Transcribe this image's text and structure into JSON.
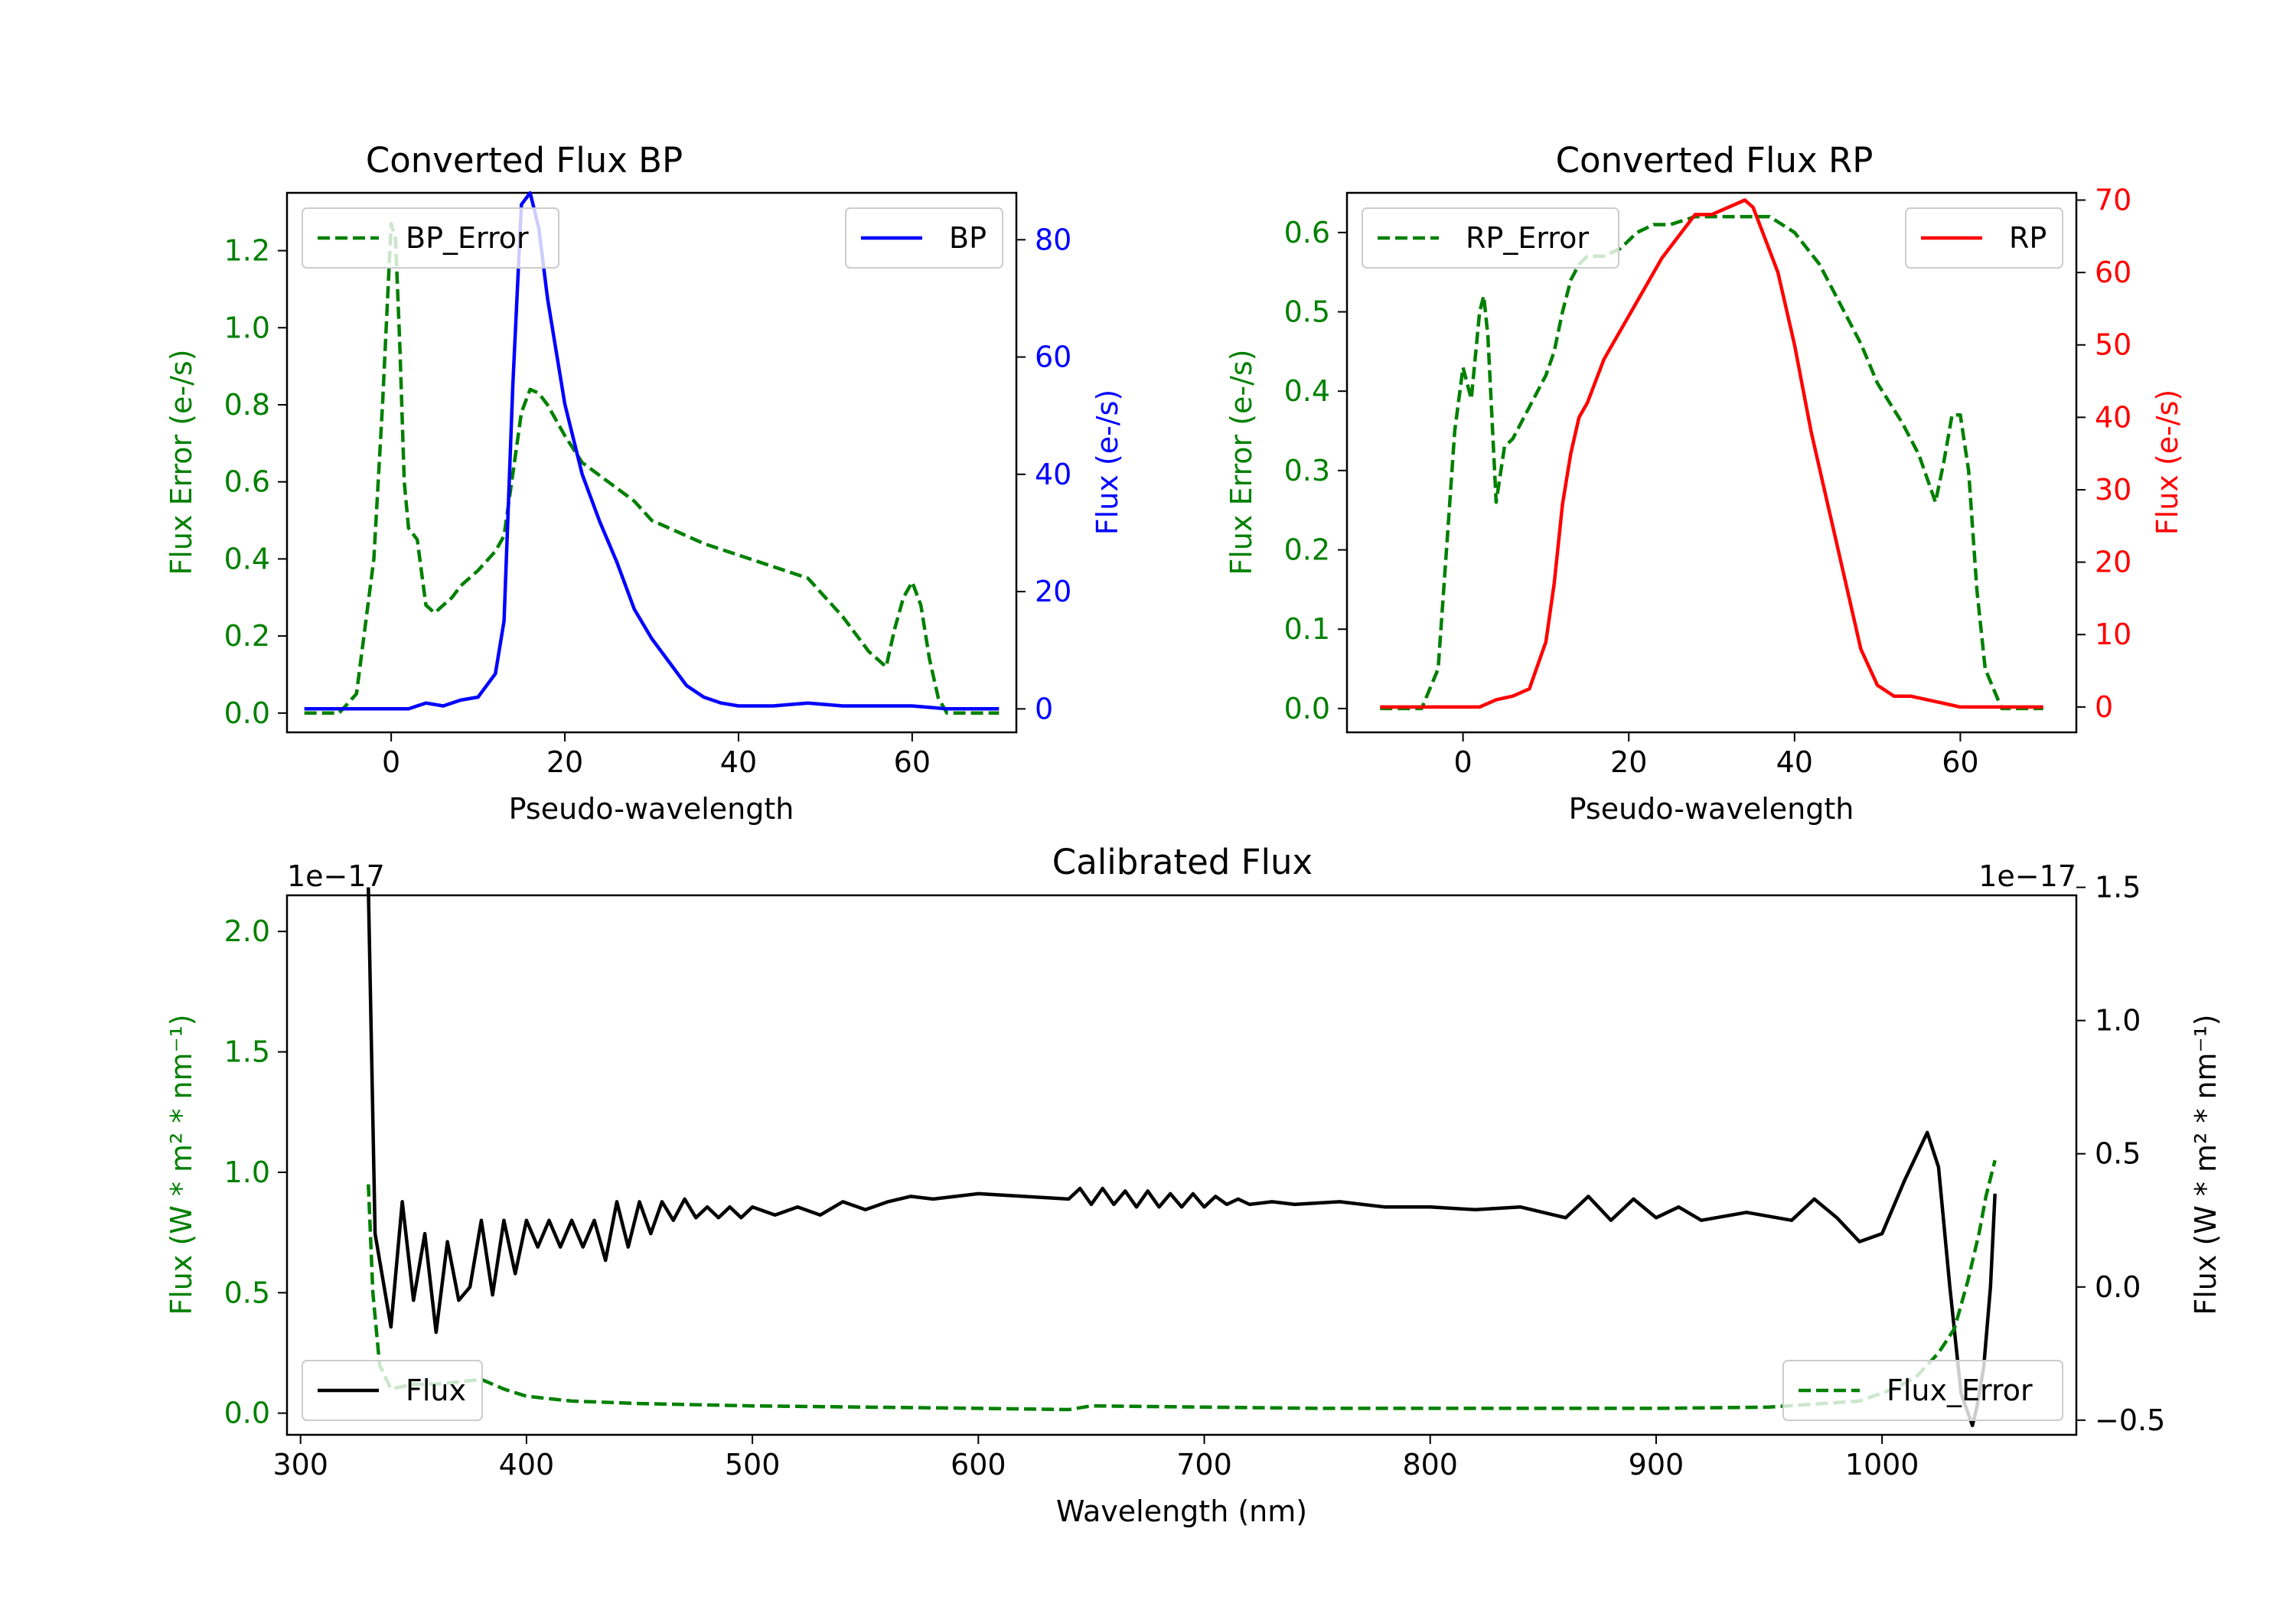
{
  "colors": {
    "bp": "#0000ff",
    "rp": "#ff0000",
    "error": "#008000",
    "flux": "#000000"
  },
  "chart_data": [
    {
      "type": "line",
      "title": "Converted Flux BP",
      "xlabel": "Pseudo-wavelength",
      "xlim": [
        -12,
        72
      ],
      "xticks": [
        0,
        20,
        40,
        60
      ],
      "left_axis": {
        "label": "Flux Error (e-/s)",
        "color": "#008000",
        "ylim": [
          -0.05,
          1.35
        ],
        "ticks": [
          0.0,
          0.2,
          0.4,
          0.6,
          0.8,
          1.0,
          1.2
        ]
      },
      "right_axis": {
        "label": "Flux (e-/s)",
        "color": "#0000ff",
        "ylim": [
          -4,
          88
        ],
        "ticks": [
          0,
          20,
          40,
          60,
          80
        ]
      },
      "legend_left": "BP_Error",
      "legend_right": "BP",
      "series": [
        {
          "name": "BP_Error",
          "axis": "left",
          "style": "dashed",
          "color": "#008000",
          "x": [
            -10,
            -6,
            -4,
            -2,
            -1,
            0,
            0.5,
            1,
            1.5,
            2,
            3,
            4,
            5,
            6,
            7,
            8,
            10,
            12,
            13,
            14,
            15,
            16,
            17,
            18,
            20,
            22,
            25,
            28,
            30,
            33,
            36,
            40,
            44,
            48,
            52,
            55,
            57,
            58,
            59,
            60,
            61,
            62,
            63,
            64,
            66,
            68,
            70
          ],
          "values": [
            0.0,
            0.0,
            0.05,
            0.4,
            0.8,
            1.27,
            1.23,
            0.95,
            0.6,
            0.48,
            0.45,
            0.28,
            0.26,
            0.28,
            0.3,
            0.33,
            0.37,
            0.42,
            0.46,
            0.62,
            0.78,
            0.84,
            0.83,
            0.8,
            0.72,
            0.65,
            0.6,
            0.55,
            0.5,
            0.47,
            0.44,
            0.41,
            0.38,
            0.35,
            0.25,
            0.16,
            0.12,
            0.22,
            0.3,
            0.34,
            0.28,
            0.14,
            0.04,
            0.0,
            0.0,
            0.0,
            0.0
          ]
        },
        {
          "name": "BP",
          "axis": "right",
          "style": "solid",
          "color": "#0000ff",
          "x": [
            -10,
            -5,
            0,
            2,
            4,
            6,
            8,
            10,
            12,
            13,
            14,
            15,
            16,
            17,
            18,
            20,
            22,
            24,
            26,
            28,
            30,
            32,
            34,
            36,
            38,
            40,
            44,
            48,
            52,
            56,
            60,
            64,
            70
          ],
          "values": [
            0,
            0,
            0,
            0,
            1,
            0.5,
            1.5,
            2,
            6,
            15,
            55,
            86,
            88,
            82,
            70,
            52,
            40,
            32,
            25,
            17,
            12,
            8,
            4,
            2,
            1,
            0.5,
            0.5,
            1,
            0.5,
            0.5,
            0.5,
            0,
            0
          ]
        }
      ]
    },
    {
      "type": "line",
      "title": "Converted Flux RP",
      "xlabel": "Pseudo-wavelength",
      "xlim": [
        -14,
        74
      ],
      "xticks": [
        0,
        20,
        40,
        60
      ],
      "left_axis": {
        "label": "Flux Error (e-/s)",
        "color": "#008000",
        "ylim": [
          -0.03,
          0.65
        ],
        "ticks": [
          0.0,
          0.1,
          0.2,
          0.3,
          0.4,
          0.5,
          0.6
        ]
      },
      "right_axis": {
        "label": "Flux (e-/s)",
        "color": "#ff0000",
        "ylim": [
          -3.5,
          71
        ],
        "ticks": [
          0,
          10,
          20,
          30,
          40,
          50,
          60,
          70
        ]
      },
      "legend_left": "RP_Error",
      "legend_right": "RP",
      "series": [
        {
          "name": "RP_Error",
          "axis": "left",
          "style": "dashed",
          "color": "#008000",
          "x": [
            -10,
            -5,
            -3,
            -2,
            -1,
            0,
            1,
            2,
            2.5,
            3,
            4,
            5,
            6,
            7,
            8,
            9,
            10,
            11,
            12,
            13,
            14,
            15,
            17,
            19,
            21,
            23,
            25,
            28,
            31,
            34,
            37,
            40,
            43,
            46,
            48,
            50,
            53,
            55,
            56,
            57,
            58,
            59,
            60,
            61,
            62,
            63,
            65,
            68,
            70
          ],
          "values": [
            0.0,
            0.0,
            0.05,
            0.2,
            0.35,
            0.43,
            0.39,
            0.5,
            0.52,
            0.47,
            0.26,
            0.33,
            0.34,
            0.36,
            0.38,
            0.4,
            0.42,
            0.45,
            0.5,
            0.54,
            0.56,
            0.57,
            0.57,
            0.58,
            0.6,
            0.61,
            0.61,
            0.62,
            0.62,
            0.62,
            0.62,
            0.6,
            0.56,
            0.5,
            0.46,
            0.41,
            0.36,
            0.32,
            0.29,
            0.26,
            0.31,
            0.37,
            0.37,
            0.3,
            0.15,
            0.05,
            0.0,
            0.0,
            0.0
          ]
        },
        {
          "name": "RP",
          "axis": "right",
          "style": "solid",
          "color": "#ff0000",
          "x": [
            -10,
            -5,
            0,
            2,
            4,
            6,
            8,
            10,
            11,
            12,
            13,
            14,
            15,
            16,
            17,
            18,
            20,
            22,
            24,
            26,
            28,
            30,
            32,
            34,
            35,
            36,
            38,
            40,
            42,
            44,
            46,
            48,
            50,
            52,
            54,
            56,
            58,
            60,
            62,
            65,
            68,
            70
          ],
          "values": [
            0,
            0,
            0,
            0,
            1,
            1.5,
            2.5,
            9,
            17,
            28,
            35,
            40,
            42,
            45,
            48,
            50,
            54,
            58,
            62,
            65,
            68,
            68,
            69,
            70,
            69,
            66,
            60,
            50,
            38,
            28,
            18,
            8,
            3,
            1.5,
            1.5,
            1,
            0.5,
            0,
            0,
            0,
            0,
            0
          ]
        }
      ]
    },
    {
      "type": "line",
      "title": "Calibrated Flux",
      "xlabel": "Wavelength (nm)",
      "xlim": [
        294,
        1086
      ],
      "xticks": [
        300,
        400,
        500,
        600,
        700,
        800,
        900,
        1000
      ],
      "left_axis": {
        "label": "Flux (W * m² * nm⁻¹)",
        "color": "#008000",
        "ylim": [
          -0.09,
          2.15
        ],
        "ticks": [
          0.0,
          0.5,
          1.0,
          1.5,
          2.0
        ],
        "tick_labels": [
          "0.0",
          "0.5",
          "1.0",
          "1.5",
          "2.0"
        ],
        "offset": "1e−17"
      },
      "right_axis": {
        "label": "Flux (W * m² * nm⁻¹)",
        "color": "#000000",
        "ylim": [
          -0.555,
          1.47
        ],
        "ticks": [
          -0.5,
          0.0,
          0.5,
          1.0,
          1.5
        ],
        "tick_labels": [
          "−0.5",
          "0.0",
          "0.5",
          "1.0",
          "1.5"
        ],
        "offset": "1e−17"
      },
      "legend_left": "Flux",
      "legend_right": "Flux_Error",
      "series": [
        {
          "name": "Flux",
          "axis": "right",
          "style": "solid",
          "color": "#000000",
          "x": [
            330,
            333,
            336,
            340,
            345,
            350,
            355,
            360,
            365,
            370,
            375,
            380,
            385,
            390,
            395,
            400,
            405,
            410,
            415,
            420,
            425,
            430,
            435,
            440,
            445,
            450,
            455,
            460,
            465,
            470,
            475,
            480,
            485,
            490,
            495,
            500,
            510,
            520,
            530,
            540,
            550,
            560,
            570,
            580,
            600,
            620,
            640,
            645,
            650,
            655,
            660,
            665,
            670,
            675,
            680,
            685,
            690,
            695,
            700,
            705,
            710,
            715,
            720,
            730,
            740,
            760,
            780,
            800,
            820,
            840,
            860,
            870,
            880,
            890,
            900,
            910,
            920,
            940,
            960,
            970,
            980,
            990,
            1000,
            1010,
            1020,
            1025,
            1030,
            1035,
            1040,
            1042,
            1045,
            1048,
            1050
          ],
          "values": [
            1.5,
            0.2,
            0.05,
            -0.15,
            0.32,
            -0.05,
            0.2,
            -0.17,
            0.17,
            -0.05,
            0.0,
            0.25,
            -0.03,
            0.25,
            0.05,
            0.25,
            0.15,
            0.25,
            0.15,
            0.25,
            0.15,
            0.25,
            0.1,
            0.32,
            0.15,
            0.32,
            0.2,
            0.32,
            0.25,
            0.33,
            0.26,
            0.3,
            0.26,
            0.3,
            0.26,
            0.3,
            0.27,
            0.3,
            0.27,
            0.32,
            0.29,
            0.32,
            0.34,
            0.33,
            0.35,
            0.34,
            0.33,
            0.37,
            0.31,
            0.37,
            0.31,
            0.36,
            0.3,
            0.36,
            0.3,
            0.35,
            0.3,
            0.35,
            0.3,
            0.34,
            0.31,
            0.33,
            0.31,
            0.32,
            0.31,
            0.32,
            0.3,
            0.3,
            0.29,
            0.3,
            0.26,
            0.34,
            0.25,
            0.33,
            0.26,
            0.3,
            0.25,
            0.28,
            0.25,
            0.33,
            0.26,
            0.17,
            0.2,
            0.4,
            0.58,
            0.45,
            0.0,
            -0.4,
            -0.52,
            -0.45,
            -0.3,
            0.0,
            0.35
          ]
        },
        {
          "name": "Flux_Error",
          "axis": "left",
          "style": "dashed",
          "color": "#008000",
          "x": [
            330,
            332,
            335,
            340,
            350,
            360,
            370,
            380,
            390,
            400,
            420,
            450,
            500,
            550,
            600,
            640,
            650,
            700,
            750,
            800,
            850,
            900,
            950,
            990,
            1005,
            1015,
            1025,
            1032,
            1038,
            1043,
            1046,
            1050
          ],
          "values": [
            0.95,
            0.5,
            0.2,
            0.1,
            0.12,
            0.12,
            0.13,
            0.14,
            0.1,
            0.07,
            0.05,
            0.04,
            0.03,
            0.025,
            0.02,
            0.015,
            0.03,
            0.025,
            0.02,
            0.02,
            0.02,
            0.02,
            0.025,
            0.05,
            0.1,
            0.15,
            0.25,
            0.35,
            0.55,
            0.75,
            0.9,
            1.05
          ]
        }
      ]
    }
  ]
}
